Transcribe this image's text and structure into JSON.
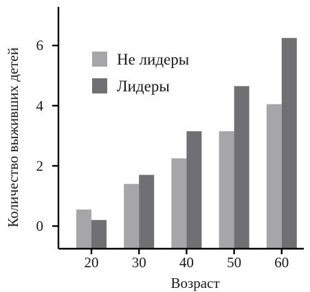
{
  "chart_data": {
    "type": "bar",
    "title": "",
    "xlabel": "Возраст",
    "ylabel": "Количество выживших детей",
    "categories": [
      "20",
      "30",
      "40",
      "50",
      "60"
    ],
    "yticks": [
      "0",
      "2",
      "4",
      "6"
    ],
    "ylim": [
      -0.75,
      7.35
    ],
    "grid": false,
    "legend_position": "top-left",
    "series": [
      {
        "name": "Не лидеры",
        "color": "#a6a6a8",
        "values": [
          0.55,
          1.4,
          2.25,
          3.15,
          4.05
        ]
      },
      {
        "name": "Лидеры",
        "color": "#707072",
        "values": [
          0.2,
          1.7,
          3.15,
          4.65,
          6.25
        ]
      }
    ]
  }
}
